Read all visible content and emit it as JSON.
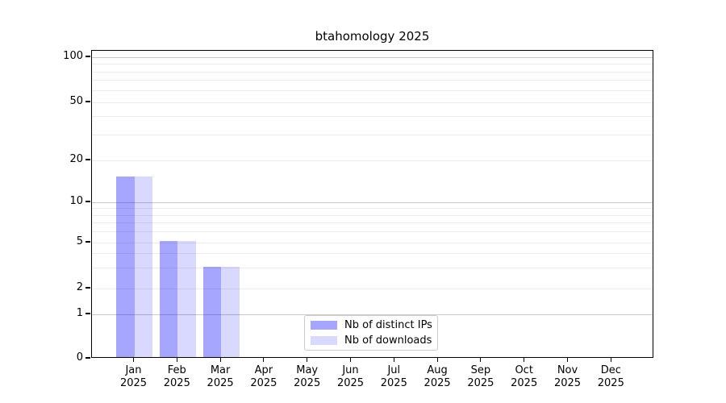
{
  "chart_data": {
    "type": "bar",
    "title": "btahomology 2025",
    "categories": [
      "Jan",
      "Feb",
      "Mar",
      "Apr",
      "May",
      "Jun",
      "Jul",
      "Aug",
      "Sep",
      "Oct",
      "Nov",
      "Dec"
    ],
    "category_year": "2025",
    "series": [
      {
        "name": "Nb of distinct IPs",
        "color": "#a6a6ff",
        "color_rgba": "rgba(0,0,255,0.35)",
        "values": [
          15,
          5,
          3,
          0,
          0,
          0,
          0,
          0,
          0,
          0,
          0,
          0
        ]
      },
      {
        "name": "Nb of downloads",
        "color": "#d9d9ff",
        "color_rgba": "rgba(0,0,255,0.15)",
        "values": [
          15,
          5,
          3,
          0,
          0,
          0,
          0,
          0,
          0,
          0,
          0,
          0
        ]
      }
    ],
    "yscale": "log-like with 0 baseline",
    "yticks": [
      {
        "label": "100",
        "value": 100
      },
      {
        "label": "50",
        "value": 50
      },
      {
        "label": "20",
        "value": 20
      },
      {
        "label": "10",
        "value": 10
      },
      {
        "label": "5",
        "value": 5
      },
      {
        "label": "2",
        "value": 2
      },
      {
        "label": "1",
        "value": 1
      },
      {
        "label": "0",
        "value": 0
      }
    ],
    "major_grid_values": [
      1,
      10,
      100
    ],
    "minor_grid_values": [
      2,
      3,
      4,
      5,
      6,
      7,
      8,
      9,
      20,
      30,
      40,
      50,
      60,
      70,
      80,
      90
    ],
    "ylim": [
      0,
      110
    ],
    "grid": true,
    "legend_position": "lower center"
  },
  "colors": {
    "background": "#ffffff",
    "spine": "#000000",
    "major_grid": "#c9c9c9",
    "minor_grid": "#ececec",
    "legend_border": "#cccccc",
    "text": "#000000"
  }
}
